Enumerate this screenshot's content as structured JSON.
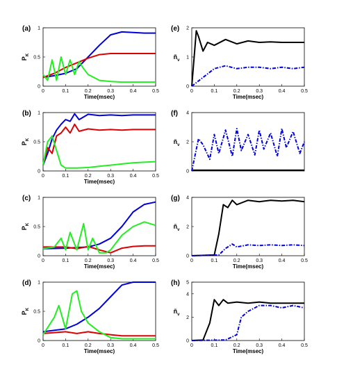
{
  "colors": {
    "blue": "#0000dd",
    "red": "#dd0000",
    "green": "#22ee22",
    "black": "#000000"
  },
  "chart_data": [
    {
      "panel": "(a)",
      "type": "line",
      "xlabel": "Time(msec)",
      "ylabel": "P_K",
      "xlim": [
        0,
        0.5
      ],
      "ylim": [
        0,
        1
      ],
      "xticks": [
        "0",
        "0.1",
        "0.2",
        "0.3",
        "0.4",
        "0.5"
      ],
      "yticks": [
        "0",
        "0.5",
        "1"
      ],
      "series": [
        {
          "color": "blue",
          "x": [
            0,
            0.05,
            0.1,
            0.15,
            0.2,
            0.25,
            0.3,
            0.35,
            0.4,
            0.45,
            0.5
          ],
          "y": [
            0.15,
            0.18,
            0.22,
            0.3,
            0.5,
            0.7,
            0.88,
            0.93,
            0.92,
            0.91,
            0.91
          ]
        },
        {
          "color": "red",
          "x": [
            0,
            0.05,
            0.1,
            0.15,
            0.2,
            0.25,
            0.3,
            0.35,
            0.4,
            0.45,
            0.5
          ],
          "y": [
            0.15,
            0.22,
            0.32,
            0.4,
            0.48,
            0.54,
            0.56,
            0.56,
            0.56,
            0.56,
            0.56
          ]
        },
        {
          "color": "green",
          "x": [
            0,
            0.02,
            0.04,
            0.06,
            0.08,
            0.1,
            0.12,
            0.14,
            0.16,
            0.18,
            0.2,
            0.25,
            0.3,
            0.35,
            0.4,
            0.45,
            0.5
          ],
          "y": [
            0.2,
            0.1,
            0.45,
            0.1,
            0.5,
            0.2,
            0.45,
            0.2,
            0.42,
            0.3,
            0.2,
            0.1,
            0.08,
            0.07,
            0.07,
            0.07,
            0.07
          ]
        }
      ]
    },
    {
      "panel": "(b)",
      "type": "line",
      "xlabel": "Time(msec)",
      "ylabel": "P_K",
      "xlim": [
        0,
        0.5
      ],
      "ylim": [
        0,
        1
      ],
      "xticks": [
        "0",
        "0.1",
        "0.2",
        "0.3",
        "0.4",
        "0.5"
      ],
      "yticks": [
        "0",
        "0.5",
        "1"
      ],
      "series": [
        {
          "color": "blue",
          "x": [
            0,
            0.02,
            0.04,
            0.06,
            0.08,
            0.1,
            0.12,
            0.14,
            0.16,
            0.2,
            0.25,
            0.3,
            0.35,
            0.4,
            0.45,
            0.5
          ],
          "y": [
            0.1,
            0.3,
            0.55,
            0.7,
            0.8,
            0.88,
            0.85,
            0.98,
            0.88,
            0.97,
            0.95,
            0.96,
            0.95,
            0.96,
            0.96,
            0.96
          ]
        },
        {
          "color": "red",
          "x": [
            0,
            0.02,
            0.04,
            0.06,
            0.08,
            0.1,
            0.12,
            0.14,
            0.16,
            0.2,
            0.25,
            0.3,
            0.35,
            0.4,
            0.45,
            0.5
          ],
          "y": [
            0.1,
            0.4,
            0.3,
            0.6,
            0.65,
            0.75,
            0.65,
            0.8,
            0.68,
            0.72,
            0.7,
            0.71,
            0.7,
            0.71,
            0.71,
            0.71
          ]
        },
        {
          "color": "green",
          "x": [
            0,
            0.02,
            0.04,
            0.06,
            0.08,
            0.1,
            0.15,
            0.2,
            0.25,
            0.3,
            0.35,
            0.4,
            0.45,
            0.5
          ],
          "y": [
            0.1,
            0.5,
            0.6,
            0.35,
            0.1,
            0.05,
            0.05,
            0.06,
            0.08,
            0.1,
            0.12,
            0.14,
            0.15,
            0.16
          ]
        }
      ]
    },
    {
      "panel": "(c)",
      "type": "line",
      "xlabel": "Time(msec)",
      "ylabel": "P_K",
      "xlim": [
        0,
        0.5
      ],
      "ylim": [
        0,
        1
      ],
      "xticks": [
        "0",
        "0.1",
        "0.2",
        "0.3",
        "0.4",
        "0.5"
      ],
      "yticks": [
        "0",
        "0.5",
        "1"
      ],
      "series": [
        {
          "color": "blue",
          "x": [
            0,
            0.1,
            0.2,
            0.25,
            0.3,
            0.35,
            0.4,
            0.45,
            0.5
          ],
          "y": [
            0.12,
            0.13,
            0.15,
            0.2,
            0.3,
            0.5,
            0.75,
            0.88,
            0.92
          ]
        },
        {
          "color": "red",
          "x": [
            0,
            0.1,
            0.15,
            0.2,
            0.25,
            0.3,
            0.35,
            0.4,
            0.45,
            0.5
          ],
          "y": [
            0.15,
            0.15,
            0.12,
            0.16,
            0.1,
            0.05,
            0.13,
            0.16,
            0.17,
            0.17
          ]
        },
        {
          "color": "green",
          "x": [
            0,
            0.05,
            0.08,
            0.1,
            0.12,
            0.15,
            0.18,
            0.2,
            0.22,
            0.25,
            0.28,
            0.3,
            0.35,
            0.4,
            0.45,
            0.5
          ],
          "y": [
            0.12,
            0.15,
            0.3,
            0.1,
            0.4,
            0.1,
            0.55,
            0.1,
            0.3,
            0.05,
            0.05,
            0.1,
            0.35,
            0.5,
            0.58,
            0.52
          ]
        }
      ]
    },
    {
      "panel": "(d)",
      "type": "line",
      "xlabel": "Time(msec)",
      "ylabel": "P_K",
      "xlim": [
        0,
        0.5
      ],
      "ylim": [
        0,
        1
      ],
      "xticks": [
        "0",
        "0.1",
        "0.2",
        "0.3",
        "0.4",
        "0.5"
      ],
      "yticks": [
        "0",
        "0.5",
        "1"
      ],
      "series": [
        {
          "color": "blue",
          "x": [
            0,
            0.1,
            0.15,
            0.2,
            0.25,
            0.3,
            0.35,
            0.4,
            0.45,
            0.5
          ],
          "y": [
            0.15,
            0.2,
            0.28,
            0.4,
            0.55,
            0.75,
            0.95,
            1.0,
            1.0,
            1.0
          ]
        },
        {
          "color": "red",
          "x": [
            0,
            0.1,
            0.15,
            0.2,
            0.25,
            0.3,
            0.35,
            0.4,
            0.45,
            0.5
          ],
          "y": [
            0.12,
            0.15,
            0.12,
            0.15,
            0.12,
            0.1,
            0.08,
            0.08,
            0.08,
            0.08
          ]
        },
        {
          "color": "green",
          "x": [
            0,
            0.05,
            0.07,
            0.1,
            0.13,
            0.15,
            0.17,
            0.2,
            0.25,
            0.3,
            0.35,
            0.4,
            0.45,
            0.5
          ],
          "y": [
            0.1,
            0.4,
            0.6,
            0.2,
            0.8,
            0.85,
            0.5,
            0.3,
            0.15,
            0.05,
            0.03,
            0.03,
            0.03,
            0.03
          ]
        }
      ]
    },
    {
      "panel": "(e)",
      "type": "line",
      "xlabel": "Time(msec)",
      "ylabel": "ñ_ν",
      "xlim": [
        0,
        0.5
      ],
      "ylim": [
        0,
        2
      ],
      "xticks": [
        "0",
        "0.1",
        "0.2",
        "0.3",
        "0.4",
        "0.5"
      ],
      "yticks": [
        "0",
        "1",
        "2"
      ],
      "series": [
        {
          "color": "black",
          "style": "solid",
          "x": [
            0,
            0.02,
            0.03,
            0.05,
            0.07,
            0.1,
            0.15,
            0.2,
            0.25,
            0.3,
            0.35,
            0.4,
            0.45,
            0.5
          ],
          "y": [
            0,
            1.9,
            1.7,
            1.2,
            1.5,
            1.4,
            1.6,
            1.45,
            1.55,
            1.5,
            1.52,
            1.5,
            1.5,
            1.5
          ]
        },
        {
          "color": "blue",
          "style": "dashdot",
          "x": [
            0,
            0.05,
            0.1,
            0.15,
            0.2,
            0.25,
            0.3,
            0.35,
            0.4,
            0.45,
            0.5
          ],
          "y": [
            0,
            0.3,
            0.6,
            0.7,
            0.6,
            0.65,
            0.65,
            0.6,
            0.65,
            0.6,
            0.65
          ]
        }
      ]
    },
    {
      "panel": "(f)",
      "type": "line",
      "xlabel": "",
      "ylabel": "ñ_ν",
      "xlim": [
        0,
        0.5
      ],
      "ylim": [
        0,
        4
      ],
      "xticks": [],
      "yticks": [
        "0",
        "2",
        "4"
      ],
      "series": [
        {
          "color": "black",
          "style": "solid",
          "x": [
            0,
            0.5
          ],
          "y": [
            0.05,
            0.05
          ]
        },
        {
          "color": "blue",
          "style": "dashdot",
          "x": [
            0,
            0.03,
            0.05,
            0.08,
            0.1,
            0.12,
            0.15,
            0.18,
            0.2,
            0.22,
            0.25,
            0.28,
            0.3,
            0.32,
            0.35,
            0.38,
            0.4,
            0.42,
            0.45,
            0.48,
            0.5
          ],
          "y": [
            0,
            2.2,
            1.8,
            0.8,
            2.5,
            1.2,
            2.8,
            1.0,
            2.9,
            1.4,
            2.5,
            1.1,
            2.8,
            1.5,
            2.6,
            1.0,
            2.9,
            1.6,
            2.7,
            1.2,
            2.0
          ]
        }
      ]
    },
    {
      "panel": "(g)",
      "type": "line",
      "xlabel": "Time(msec)",
      "ylabel": "ñ_ν",
      "xlim": [
        0,
        0.5
      ],
      "ylim": [
        0,
        4
      ],
      "xticks": [
        "0",
        "0.1",
        "0.2",
        "0.3",
        "0.4",
        "0.5"
      ],
      "yticks": [
        "0",
        "2",
        "4"
      ],
      "series": [
        {
          "color": "black",
          "style": "solid",
          "x": [
            0,
            0.1,
            0.12,
            0.14,
            0.16,
            0.18,
            0.2,
            0.25,
            0.3,
            0.35,
            0.4,
            0.45,
            0.5
          ],
          "y": [
            0,
            0.05,
            1.5,
            3.5,
            3.3,
            3.8,
            3.5,
            3.8,
            3.7,
            3.8,
            3.75,
            3.8,
            3.7
          ]
        },
        {
          "color": "blue",
          "style": "dashdot",
          "x": [
            0,
            0.12,
            0.15,
            0.18,
            0.2,
            0.25,
            0.3,
            0.35,
            0.4,
            0.45,
            0.5
          ],
          "y": [
            0,
            0.05,
            0.5,
            0.8,
            0.6,
            0.75,
            0.7,
            0.75,
            0.7,
            0.75,
            0.7
          ]
        }
      ]
    },
    {
      "panel": "(h)",
      "type": "line",
      "xlabel": "Time(msec)",
      "ylabel": "ñ_ν",
      "xlim": [
        0,
        0.5
      ],
      "ylim": [
        0,
        5
      ],
      "xticks": [
        "0",
        "0.1",
        "0.2",
        "0.3",
        "0.4",
        "0.5"
      ],
      "yticks": [
        "0",
        "2",
        "4",
        "5"
      ],
      "series": [
        {
          "color": "black",
          "style": "solid",
          "x": [
            0,
            0.05,
            0.08,
            0.1,
            0.12,
            0.14,
            0.16,
            0.2,
            0.25,
            0.3,
            0.35,
            0.4,
            0.45,
            0.5
          ],
          "y": [
            0,
            0.05,
            1.5,
            3.5,
            3.0,
            3.5,
            3.2,
            3.3,
            3.2,
            3.3,
            3.2,
            3.2,
            3.2,
            3.2
          ]
        },
        {
          "color": "blue",
          "style": "dashdot",
          "x": [
            0,
            0.15,
            0.2,
            0.22,
            0.25,
            0.3,
            0.35,
            0.4,
            0.45,
            0.5
          ],
          "y": [
            0,
            0.05,
            0.5,
            2.0,
            2.5,
            3.0,
            3.0,
            2.8,
            3.0,
            2.8
          ]
        }
      ]
    }
  ]
}
